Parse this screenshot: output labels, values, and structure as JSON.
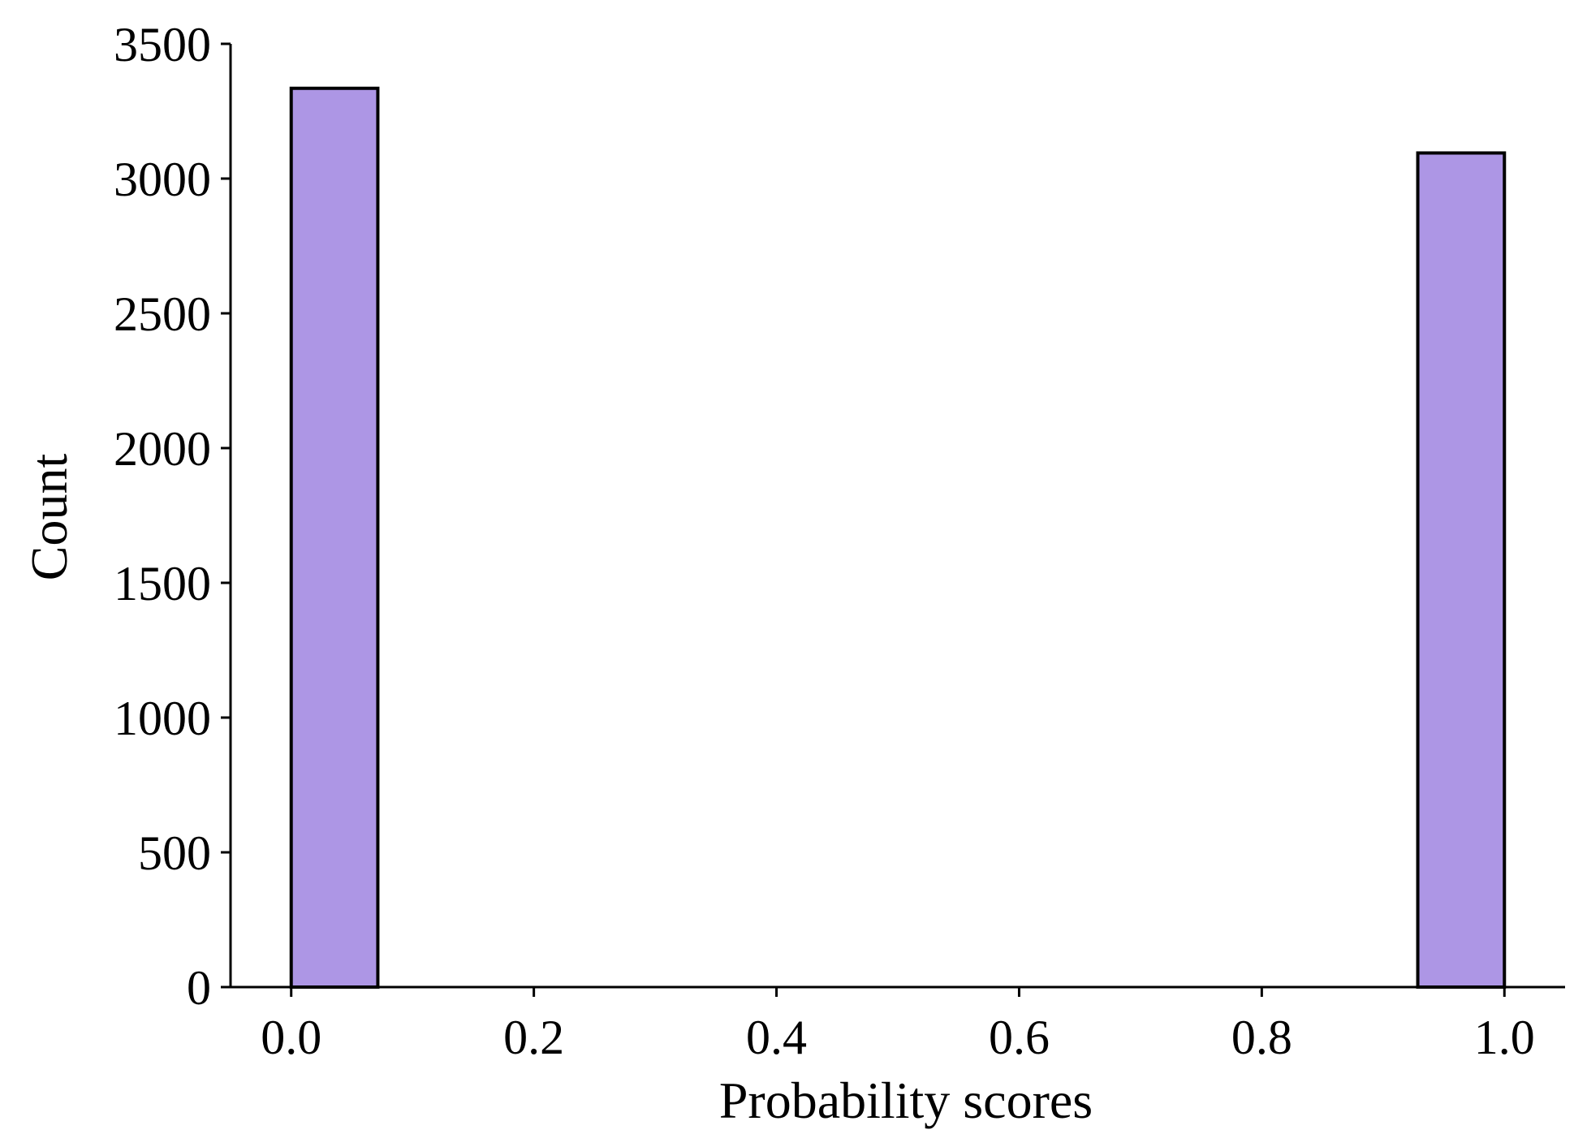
{
  "chart_data": {
    "type": "bar",
    "title": "",
    "xlabel": "Probability scores",
    "ylabel": "Count",
    "xlim": [
      -0.05,
      1.05
    ],
    "ylim": [
      0,
      3500
    ],
    "x_ticks": [
      0.0,
      0.2,
      0.4,
      0.6,
      0.8,
      1.0
    ],
    "x_tick_labels": [
      "0.0",
      "0.2",
      "0.4",
      "0.6",
      "0.8",
      "1.0"
    ],
    "y_ticks": [
      0,
      500,
      1000,
      1500,
      2000,
      2500,
      3000,
      3500
    ],
    "y_tick_labels": [
      "0",
      "500",
      "1000",
      "1500",
      "2000",
      "2500",
      "3000",
      "3500"
    ],
    "bins": [
      {
        "x0": 0.0,
        "x1": 0.0714,
        "count": 3335
      },
      {
        "x0": 0.9286,
        "x1": 1.0,
        "count": 3095
      }
    ],
    "bar_color": "#ad96e5",
    "edge_color": "#000000",
    "grid": false,
    "legend": "none"
  }
}
